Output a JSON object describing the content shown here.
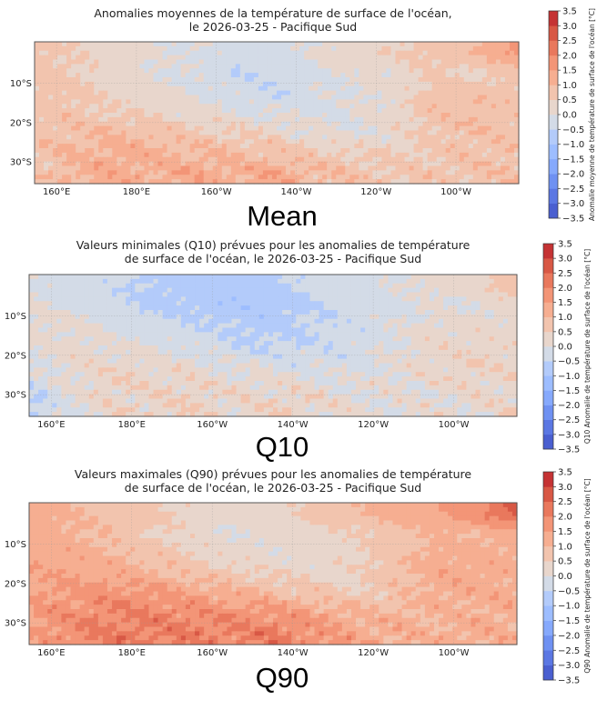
{
  "colors": {
    "bins": [
      "#4a5fd0",
      "#5b77e3",
      "#6f91f2",
      "#86a9fc",
      "#9dbdff",
      "#b3cbfa",
      "#d3dbe7",
      "#e8d6cc",
      "#f2c4ae",
      "#f6ae91",
      "#f39577",
      "#e9785d",
      "#d85845",
      "#c53334"
    ],
    "frame": "#555555"
  },
  "chart_data": [
    {
      "type": "heatmap",
      "title_lines": [
        "Anomalies moyennes de la température de surface de l'océan,",
        "le 2026-03-25 - Pacifique Sud"
      ],
      "panel_label": "Mean",
      "colorbar_label": "Anomalie moyenne de température de surface de l'océan [°C]",
      "colorbar_ticks": [
        "3.5",
        "3.0",
        "2.5",
        "2.0",
        "1.5",
        "1.0",
        "0.5",
        "0.0",
        "−0.5",
        "−1.0",
        "−1.5",
        "−2.0",
        "−2.5",
        "−3.0",
        "−3.5"
      ],
      "vlim": [
        -3.5,
        3.5
      ],
      "xticks": [
        {
          "lon": 160,
          "label": "160°E"
        },
        {
          "lon": 180,
          "label": "180°E"
        },
        {
          "lon": 200,
          "label": "160°W"
        },
        {
          "lon": 220,
          "label": "140°W"
        },
        {
          "lon": 240,
          "label": "120°W"
        },
        {
          "lon": 260,
          "label": "100°W"
        }
      ],
      "yticks": [
        {
          "lat": -10,
          "label": "10°S"
        },
        {
          "lat": -20,
          "label": "20°S"
        },
        {
          "lat": -30,
          "label": "30°S"
        }
      ],
      "lon_range": [
        154.5,
        275.7
      ],
      "lat_range": [
        0.5,
        -35.5
      ],
      "grid_lats": [
        -2.5,
        -7.5,
        -12.5,
        -17.5,
        -22.5,
        -27.5,
        -32.5
      ],
      "grid_lons": [
        155,
        165,
        175,
        185,
        195,
        205,
        215,
        225,
        235,
        245,
        255,
        265,
        275
      ],
      "values": [
        [
          0.6,
          0.5,
          0.3,
          0.0,
          0.0,
          -0.2,
          -0.1,
          0.0,
          0.3,
          0.5,
          0.7,
          1.0,
          1.6
        ],
        [
          0.7,
          0.5,
          0.3,
          0.0,
          -0.1,
          -0.5,
          -0.4,
          0.0,
          0.0,
          0.2,
          0.5,
          0.4,
          0.6
        ],
        [
          0.8,
          0.6,
          0.4,
          0.2,
          0.0,
          -0.2,
          -0.4,
          -0.1,
          0.0,
          0.2,
          0.8,
          0.8,
          0.7
        ],
        [
          0.7,
          0.7,
          0.5,
          0.4,
          0.2,
          0.0,
          -0.1,
          -0.1,
          0.0,
          0.3,
          0.8,
          0.9,
          0.8
        ],
        [
          0.8,
          0.9,
          1.0,
          0.8,
          0.6,
          0.5,
          0.3,
          0.1,
          0.0,
          0.2,
          0.7,
          0.9,
          0.8
        ],
        [
          0.8,
          1.0,
          1.2,
          1.1,
          1.0,
          0.9,
          0.8,
          0.6,
          0.4,
          0.5,
          0.6,
          0.8,
          0.8
        ],
        [
          0.7,
          1.1,
          1.3,
          1.2,
          1.3,
          1.2,
          1.3,
          1.0,
          0.7,
          0.7,
          0.6,
          0.8,
          0.8
        ]
      ]
    },
    {
      "type": "heatmap",
      "title_lines": [
        "Valeurs minimales (Q10) prévues pour les anomalies de température",
        "de surface de l'océan, le 2026-03-25 - Pacifique Sud"
      ],
      "panel_label": "Q10",
      "colorbar_label": "Q10 Anomalie de température de surface de l'océan [°C]",
      "colorbar_ticks": [
        "3.5",
        "3.0",
        "2.5",
        "2.0",
        "1.5",
        "1.0",
        "0.5",
        "0.0",
        "−0.5",
        "−1.0",
        "−1.5",
        "−2.0",
        "−2.5",
        "−3.0",
        "−3.5"
      ],
      "vlim": [
        -3.5,
        3.5
      ],
      "xticks": [
        {
          "lon": 160,
          "label": "160°E"
        },
        {
          "lon": 180,
          "label": "180°E"
        },
        {
          "lon": 200,
          "label": "160°W"
        },
        {
          "lon": 220,
          "label": "140°W"
        },
        {
          "lon": 240,
          "label": "120°W"
        },
        {
          "lon": 260,
          "label": "100°W"
        }
      ],
      "yticks": [
        {
          "lat": -10,
          "label": "10°S"
        },
        {
          "lat": -20,
          "label": "20°S"
        },
        {
          "lat": -30,
          "label": "30°S"
        }
      ],
      "lon_range": [
        154.5,
        275.7
      ],
      "lat_range": [
        0.5,
        -35.5
      ],
      "grid_lats": [
        -2.5,
        -7.5,
        -12.5,
        -17.5,
        -22.5,
        -27.5,
        -32.5
      ],
      "grid_lons": [
        155,
        165,
        175,
        185,
        195,
        205,
        215,
        225,
        235,
        245,
        255,
        265,
        275
      ],
      "values": [
        [
          0.0,
          -0.2,
          -0.4,
          -0.6,
          -0.7,
          -0.8,
          -0.6,
          -0.4,
          -0.2,
          0.0,
          0.1,
          0.3,
          0.9
        ],
        [
          0.1,
          -0.1,
          -0.3,
          -0.6,
          -0.7,
          -0.9,
          -0.8,
          -0.5,
          -0.3,
          -0.2,
          0.0,
          0.0,
          0.2
        ],
        [
          0.2,
          0.1,
          -0.1,
          -0.3,
          -0.4,
          -0.6,
          -0.7,
          -0.5,
          -0.3,
          -0.1,
          0.2,
          0.2,
          0.2
        ],
        [
          0.1,
          0.2,
          0.1,
          0.0,
          -0.2,
          -0.4,
          -0.5,
          -0.4,
          -0.3,
          0.0,
          0.3,
          0.3,
          0.3
        ],
        [
          0.0,
          0.2,
          0.3,
          0.3,
          0.1,
          0.0,
          -0.1,
          -0.2,
          -0.2,
          0.0,
          0.3,
          0.4,
          0.3
        ],
        [
          -0.3,
          0.1,
          0.4,
          0.4,
          0.3,
          0.2,
          0.2,
          0.1,
          0.0,
          0.1,
          0.2,
          0.3,
          0.3
        ],
        [
          -0.6,
          0.0,
          0.3,
          0.4,
          0.4,
          0.3,
          0.4,
          0.3,
          0.1,
          0.1,
          0.1,
          0.2,
          0.3
        ]
      ]
    },
    {
      "type": "heatmap",
      "title_lines": [
        "Valeurs maximales (Q90) prévues pour les anomalies de température",
        "de surface de l'océan, le 2026-03-25 - Pacifique Sud"
      ],
      "panel_label": "Q90",
      "colorbar_label": "Q90 Anomalie de température de surface de l'océan [°C]",
      "colorbar_ticks": [
        "3.5",
        "3.0",
        "2.5",
        "2.0",
        "1.5",
        "1.0",
        "0.5",
        "0.0",
        "−0.5",
        "−1.0",
        "−1.5",
        "−2.0",
        "−2.5",
        "−3.0",
        "−3.5"
      ],
      "vlim": [
        -3.5,
        3.5
      ],
      "xticks": [
        {
          "lon": 160,
          "label": "160°E"
        },
        {
          "lon": 180,
          "label": "180°E"
        },
        {
          "lon": 200,
          "label": "160°W"
        },
        {
          "lon": 220,
          "label": "140°W"
        },
        {
          "lon": 240,
          "label": "120°W"
        },
        {
          "lon": 260,
          "label": "100°W"
        }
      ],
      "yticks": [
        {
          "lat": -10,
          "label": "10°S"
        },
        {
          "lat": -20,
          "label": "20°S"
        },
        {
          "lat": -30,
          "label": "30°S"
        }
      ],
      "lon_range": [
        154.5,
        275.7
      ],
      "lat_range": [
        0.5,
        -35.5
      ],
      "grid_lats": [
        -2.5,
        -7.5,
        -12.5,
        -17.5,
        -22.5,
        -27.5,
        -32.5
      ],
      "grid_lons": [
        155,
        165,
        175,
        185,
        195,
        205,
        215,
        225,
        235,
        245,
        255,
        265,
        275
      ],
      "values": [
        [
          1.2,
          1.0,
          0.9,
          0.6,
          0.4,
          0.2,
          0.3,
          0.6,
          0.9,
          1.2,
          1.4,
          1.8,
          2.6
        ],
        [
          1.3,
          1.1,
          0.9,
          0.5,
          0.3,
          0.0,
          0.1,
          0.3,
          0.4,
          0.7,
          1.0,
          1.0,
          1.2
        ],
        [
          1.4,
          1.3,
          1.1,
          0.8,
          0.5,
          0.3,
          0.1,
          0.2,
          0.4,
          0.7,
          1.2,
          1.2,
          1.2
        ],
        [
          1.4,
          1.4,
          1.3,
          1.1,
          0.8,
          0.6,
          0.4,
          0.3,
          0.4,
          0.8,
          1.3,
          1.3,
          1.2
        ],
        [
          1.5,
          1.6,
          1.8,
          1.6,
          1.4,
          1.2,
          1.0,
          0.7,
          0.5,
          0.8,
          1.2,
          1.3,
          1.2
        ],
        [
          1.5,
          1.8,
          2.0,
          2.0,
          1.9,
          1.8,
          1.7,
          1.4,
          1.1,
          1.0,
          1.1,
          1.2,
          1.2
        ],
        [
          1.4,
          1.9,
          2.1,
          2.1,
          2.1,
          2.0,
          2.1,
          1.8,
          1.4,
          1.2,
          1.1,
          1.2,
          1.2
        ]
      ]
    }
  ]
}
